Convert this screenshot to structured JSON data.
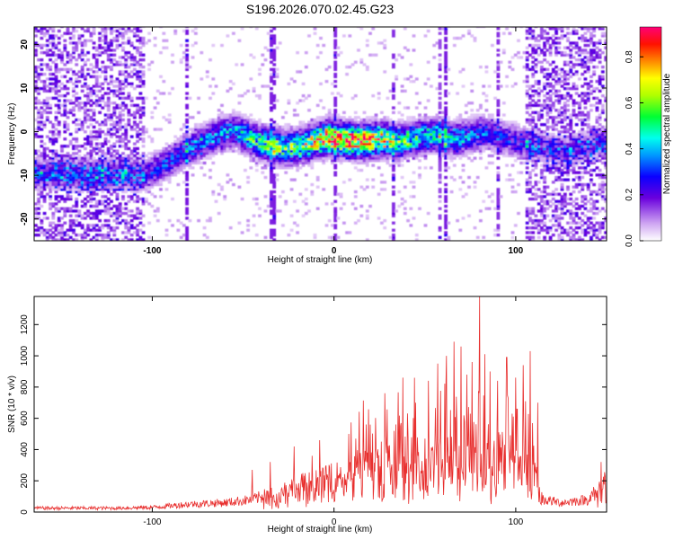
{
  "title": "S196.2026.070.02.45.G23",
  "chart_data": [
    {
      "type": "heatmap",
      "name": "spectrogram",
      "xlabel": "Height of straight line (km)",
      "ylabel": "Frequency (Hz)",
      "xlim": [
        -165,
        150
      ],
      "ylim": [
        -25,
        24
      ],
      "xticks": [
        -100,
        0,
        100
      ],
      "yticks": [
        -20,
        -10,
        0,
        10,
        20
      ],
      "colorbar": {
        "label": "Normalized spectral amplitude",
        "range": [
          0,
          0.93
        ],
        "ticks": [
          "0.0",
          "0.2",
          "0.4",
          "0.6",
          "0.8"
        ],
        "tick_values": [
          0.0,
          0.2,
          0.4,
          0.6,
          0.8
        ]
      },
      "signal_track": {
        "x": [
          -105,
          -95,
          -85,
          -75,
          -65,
          -55,
          -45,
          -35,
          -25,
          -15,
          -5,
          5,
          15,
          25,
          35,
          45,
          55,
          65,
          75,
          85,
          95,
          105,
          115,
          125,
          135,
          145
        ],
        "freq": [
          -10,
          -8,
          -5,
          -3,
          -1,
          0,
          -2,
          -3.5,
          -4,
          -3,
          -1.5,
          -2,
          -2.5,
          -2,
          -2.5,
          -1.5,
          -1,
          -2,
          -1,
          -0.5,
          -2,
          -3,
          -4,
          -5,
          -4,
          -3
        ],
        "peak_amplitude": [
          0.25,
          0.3,
          0.3,
          0.35,
          0.35,
          0.4,
          0.5,
          0.55,
          0.55,
          0.65,
          0.8,
          0.85,
          0.8,
          0.7,
          0.55,
          0.5,
          0.45,
          0.4,
          0.35,
          0.3,
          0.25,
          0.25,
          0.2,
          0.2,
          0.2,
          0.2
        ]
      }
    },
    {
      "type": "line",
      "name": "snr",
      "xlabel": "Height of straight line (km)",
      "ylabel": "SNR (10 * v/v)",
      "xlim": [
        -165,
        150
      ],
      "ylim": [
        0,
        1380
      ],
      "xticks": [
        -100,
        0,
        100
      ],
      "yticks": [
        0,
        200,
        400,
        600,
        800,
        1000,
        1200
      ],
      "color": "#e8302f",
      "baseline_profile": {
        "x": [
          -165,
          -120,
          -100,
          -80,
          -60,
          -45,
          -30,
          -20,
          -10,
          0,
          10,
          20,
          30,
          40,
          50,
          60,
          70,
          80,
          90,
          100,
          110,
          115,
          125,
          140,
          150
        ],
        "snr": [
          25,
          25,
          30,
          50,
          60,
          80,
          130,
          170,
          190,
          220,
          260,
          300,
          330,
          340,
          330,
          330,
          340,
          340,
          320,
          310,
          250,
          80,
          60,
          80,
          200
        ]
      },
      "spikes": {
        "x": [
          -45,
          -35,
          -22,
          -12,
          -8,
          8,
          20,
          28,
          33,
          38,
          45,
          52,
          57,
          62,
          66,
          70,
          73,
          76,
          80,
          83,
          86,
          90,
          95,
          100,
          104,
          108,
          112,
          147
        ],
        "snr": [
          270,
          320,
          420,
          360,
          460,
          500,
          560,
          760,
          520,
          860,
          700,
          840,
          950,
          1000,
          1090,
          1060,
          880,
          960,
          1380,
          1010,
          900,
          840,
          990,
          860,
          940,
          1030,
          700,
          320
        ]
      }
    }
  ]
}
